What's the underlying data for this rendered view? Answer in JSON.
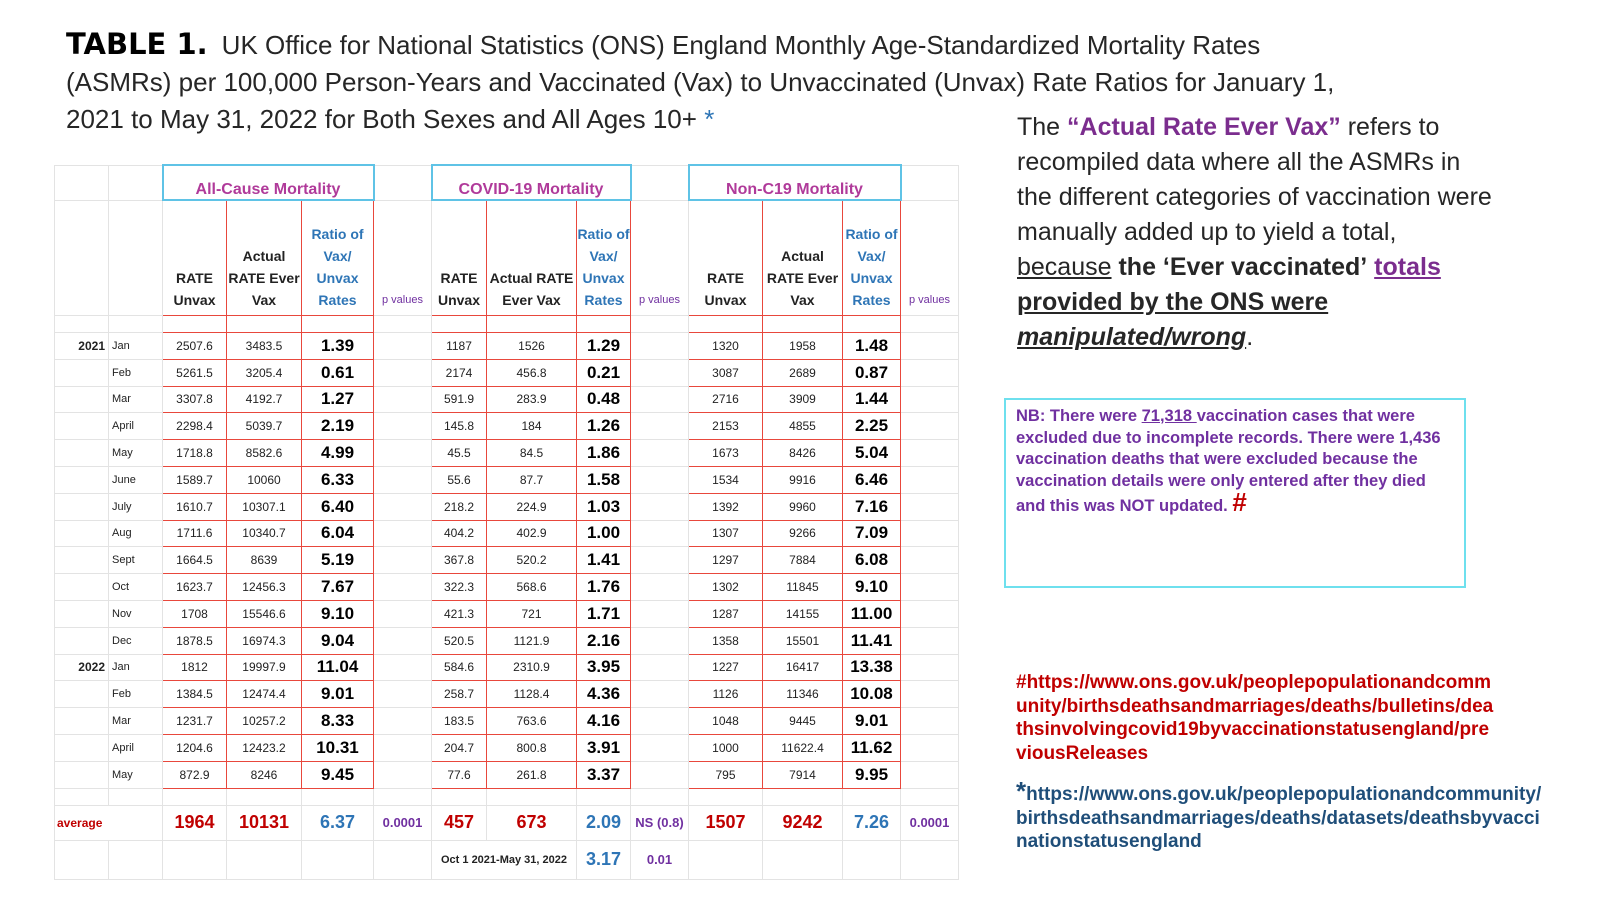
{
  "title": {
    "label": "TABLE 1.",
    "text": "UK Office for National Statistics (ONS) England Monthly Age-Standardized Mortality Rates (ASMRs) per 100,000 Person-Years and Vaccinated (Vax) to Unvaccinated (Unvax) Rate Ratios for January 1, 2021 to May 31, 2022 for Both Sexes and All Ages 10+",
    "star": "*"
  },
  "table": {
    "groups": [
      "All-Cause Mortality",
      "COVID-19 Mortality",
      "Non-C19 Mortality"
    ],
    "subheaders": {
      "all": [
        "RATE Unvax",
        "Actual RATE Ever Vax",
        "Ratio of Vax/ Unvax Rates"
      ],
      "covid": [
        "RATE Unvax",
        "Actual RATE Ever Vax",
        "Ratio of Vax/ Unvax Rates"
      ],
      "non": [
        "RATE Unvax",
        "Actual RATE Ever Vax",
        "Ratio of Vax/ Unvax Rates"
      ],
      "pvalues": "p values"
    },
    "rows": [
      {
        "year": "2021",
        "month": "Jan",
        "a": [
          "2507.6",
          "3483.5",
          "1.39"
        ],
        "c": [
          "1187",
          "1526",
          "1.29"
        ],
        "n": [
          "1320",
          "1958",
          "1.48"
        ]
      },
      {
        "year": "",
        "month": "Feb",
        "a": [
          "5261.5",
          "3205.4",
          "0.61"
        ],
        "c": [
          "2174",
          "456.8",
          "0.21"
        ],
        "n": [
          "3087",
          "2689",
          "0.87"
        ]
      },
      {
        "year": "",
        "month": "Mar",
        "a": [
          "3307.8",
          "4192.7",
          "1.27"
        ],
        "c": [
          "591.9",
          "283.9",
          "0.48"
        ],
        "n": [
          "2716",
          "3909",
          "1.44"
        ]
      },
      {
        "year": "",
        "month": "April",
        "a": [
          "2298.4",
          "5039.7",
          "2.19"
        ],
        "c": [
          "145.8",
          "184",
          "1.26"
        ],
        "n": [
          "2153",
          "4855",
          "2.25"
        ]
      },
      {
        "year": "",
        "month": "May",
        "a": [
          "1718.8",
          "8582.6",
          "4.99"
        ],
        "c": [
          "45.5",
          "84.5",
          "1.86"
        ],
        "n": [
          "1673",
          "8426",
          "5.04"
        ]
      },
      {
        "year": "",
        "month": "June",
        "a": [
          "1589.7",
          "10060",
          "6.33"
        ],
        "c": [
          "55.6",
          "87.7",
          "1.58"
        ],
        "n": [
          "1534",
          "9916",
          "6.46"
        ]
      },
      {
        "year": "",
        "month": "July",
        "a": [
          "1610.7",
          "10307.1",
          "6.40"
        ],
        "c": [
          "218.2",
          "224.9",
          "1.03"
        ],
        "n": [
          "1392",
          "9960",
          "7.16"
        ]
      },
      {
        "year": "",
        "month": "Aug",
        "a": [
          "1711.6",
          "10340.7",
          "6.04"
        ],
        "c": [
          "404.2",
          "402.9",
          "1.00"
        ],
        "n": [
          "1307",
          "9266",
          "7.09"
        ]
      },
      {
        "year": "",
        "month": "Sept",
        "a": [
          "1664.5",
          "8639",
          "5.19"
        ],
        "c": [
          "367.8",
          "520.2",
          "1.41"
        ],
        "n": [
          "1297",
          "7884",
          "6.08"
        ]
      },
      {
        "year": "",
        "month": "Oct",
        "a": [
          "1623.7",
          "12456.3",
          "7.67"
        ],
        "c": [
          "322.3",
          "568.6",
          "1.76"
        ],
        "n": [
          "1302",
          "11845",
          "9.10"
        ]
      },
      {
        "year": "",
        "month": "Nov",
        "a": [
          "1708",
          "15546.6",
          "9.10"
        ],
        "c": [
          "421.3",
          "721",
          "1.71"
        ],
        "n": [
          "1287",
          "14155",
          "11.00"
        ]
      },
      {
        "year": "",
        "month": "Dec",
        "a": [
          "1878.5",
          "16974.3",
          "9.04"
        ],
        "c": [
          "520.5",
          "1121.9",
          "2.16"
        ],
        "n": [
          "1358",
          "15501",
          "11.41"
        ]
      },
      {
        "year": "2022",
        "month": "Jan",
        "a": [
          "1812",
          "19997.9",
          "11.04"
        ],
        "c": [
          "584.6",
          "2310.9",
          "3.95"
        ],
        "n": [
          "1227",
          "16417",
          "13.38"
        ]
      },
      {
        "year": "",
        "month": "Feb",
        "a": [
          "1384.5",
          "12474.4",
          "9.01"
        ],
        "c": [
          "258.7",
          "1128.4",
          "4.36"
        ],
        "n": [
          "1126",
          "11346",
          "10.08"
        ]
      },
      {
        "year": "",
        "month": "Mar",
        "a": [
          "1231.7",
          "10257.2",
          "8.33"
        ],
        "c": [
          "183.5",
          "763.6",
          "4.16"
        ],
        "n": [
          "1048",
          "9445",
          "9.01"
        ]
      },
      {
        "year": "",
        "month": "April",
        "a": [
          "1204.6",
          "12423.2",
          "10.31"
        ],
        "c": [
          "204.7",
          "800.8",
          "3.91"
        ],
        "n": [
          "1000",
          "11622.4",
          "11.62"
        ]
      },
      {
        "year": "",
        "month": "May",
        "a": [
          "872.9",
          "8246",
          "9.45"
        ],
        "c": [
          "77.6",
          "261.8",
          "3.37"
        ],
        "n": [
          "795",
          "7914",
          "9.95"
        ]
      }
    ],
    "average": {
      "label": "average",
      "a": [
        "1964",
        "10131",
        "6.37"
      ],
      "a_p": "0.0001",
      "c": [
        "457",
        "673",
        "2.09"
      ],
      "c_p": "NS (0.8)",
      "n": [
        "1507",
        "9242",
        "7.26"
      ],
      "n_p": "0.0001"
    },
    "oct_row": {
      "label": "Oct 1 2021-May 31, 2022",
      "ratio": "3.17",
      "p": "0.01"
    }
  },
  "note": {
    "p1": "The ",
    "highlight": "“Actual Rate Ever Vax”",
    "p2": " refers to recompiled data where all the ASMRs in the different categories of vaccination were manually added up to yield a total, ",
    "because": "because",
    "the_ever": " the ‘Ever vaccinated’",
    "totals": "totals",
    "provided": " provided by the ONS were ",
    "manip": "manipulated/wrong",
    "end": "."
  },
  "nb": {
    "a": "NB:  There were ",
    "num": "71,318 ",
    "b": "vaccination cases that were excluded due to incomplete records.  There were 1,436 vaccination deaths that were excluded because the vaccination details were only entered after they died and this was NOT updated. ",
    "hash": "#"
  },
  "sources": {
    "s1": "#https://www.ons.gov.uk/peoplepopulationandcommunity/birthsdeathsandmarriages/deaths/bulletins/deathsinvolvingcovid19byvaccinationstatusengland/previousReleases",
    "s2_star": "*",
    "s2": "https://www.ons.gov.uk/peoplepopulationandcommunity/birthsdeathsandmarriages/deaths/datasets/deathsbyvaccinationstatusengland"
  }
}
